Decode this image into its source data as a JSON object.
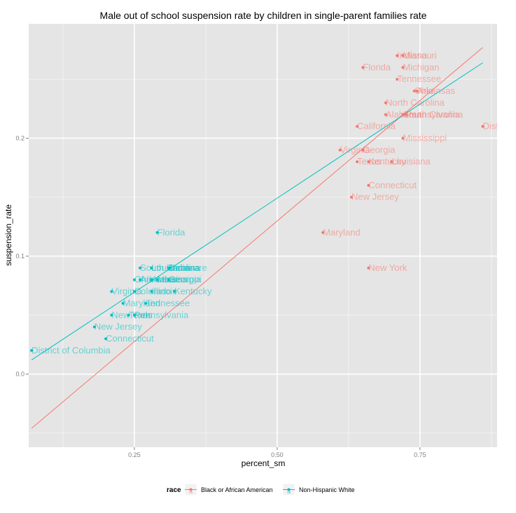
{
  "colors": {
    "panel": "#e5e5e5",
    "grid_major": "#ffffff",
    "grid_minor": "#f2f2f2",
    "black": "#f8766d",
    "white": "#00bfc4",
    "axis_text": "#7f7f7f"
  },
  "chart_data": {
    "type": "scatter",
    "title": "Male out of school suspension rate by children in single-parent families rate",
    "xlabel": "percent_sm",
    "ylabel": "suspension_rate",
    "xlim": [
      0.065,
      0.885
    ],
    "ylim": [
      -0.062,
      0.297
    ],
    "x_ticks": [
      0.25,
      0.5,
      0.75
    ],
    "x_tick_labels": [
      "0.25",
      "0.50",
      "0.75"
    ],
    "y_ticks": [
      0.0,
      0.1,
      0.2
    ],
    "y_tick_labels": [
      "0.0",
      "0.1",
      "0.2"
    ],
    "grid": true,
    "legend_position": "bottom",
    "legend": {
      "title": "race",
      "items": [
        {
          "key": "black",
          "label": "Black or African American",
          "symbol": "a"
        },
        {
          "key": "white",
          "label": "Non-Hispanic White",
          "symbol": "a"
        }
      ]
    },
    "series": [
      {
        "name": "Black or African American",
        "key": "black",
        "fit": {
          "x": [
            0.07,
            0.86
          ],
          "y": [
            -0.046,
            0.277
          ]
        },
        "points": [
          {
            "x": 0.71,
            "y": 0.27,
            "label": "Indiana"
          },
          {
            "x": 0.72,
            "y": 0.27,
            "label": "Missouri"
          },
          {
            "x": 0.65,
            "y": 0.26,
            "label": "Florida"
          },
          {
            "x": 0.72,
            "y": 0.26,
            "label": "Michigan"
          },
          {
            "x": 0.71,
            "y": 0.25,
            "label": "Tennessee"
          },
          {
            "x": 0.74,
            "y": 0.24,
            "label": "Ohio"
          },
          {
            "x": 0.745,
            "y": 0.24,
            "label": "Arkansas"
          },
          {
            "x": 0.69,
            "y": 0.23,
            "label": "North Carolina"
          },
          {
            "x": 0.69,
            "y": 0.22,
            "label": "Alabama"
          },
          {
            "x": 0.72,
            "y": 0.22,
            "label": "South Carolina"
          },
          {
            "x": 0.725,
            "y": 0.22,
            "label": "Pennsylvania"
          },
          {
            "x": 0.64,
            "y": 0.21,
            "label": "California"
          },
          {
            "x": 0.86,
            "y": 0.21,
            "label": "District of Columbia"
          },
          {
            "x": 0.72,
            "y": 0.2,
            "label": "Mississippi"
          },
          {
            "x": 0.61,
            "y": 0.19,
            "label": "Virginia"
          },
          {
            "x": 0.65,
            "y": 0.19,
            "label": "Georgia"
          },
          {
            "x": 0.64,
            "y": 0.18,
            "label": "Texas"
          },
          {
            "x": 0.66,
            "y": 0.18,
            "label": "Kentucky"
          },
          {
            "x": 0.7,
            "y": 0.18,
            "label": "Louisiana"
          },
          {
            "x": 0.66,
            "y": 0.16,
            "label": "Connecticut"
          },
          {
            "x": 0.63,
            "y": 0.15,
            "label": "New Jersey"
          },
          {
            "x": 0.58,
            "y": 0.12,
            "label": "Maryland"
          },
          {
            "x": 0.66,
            "y": 0.09,
            "label": "New York"
          }
        ]
      },
      {
        "name": "Non-Hispanic White",
        "key": "white",
        "fit": {
          "x": [
            0.07,
            0.86
          ],
          "y": [
            0.012,
            0.264
          ]
        },
        "points": [
          {
            "x": 0.29,
            "y": 0.12,
            "label": "Florida"
          },
          {
            "x": 0.26,
            "y": 0.09,
            "label": "South Carolina"
          },
          {
            "x": 0.28,
            "y": 0.09,
            "label": "Louisiana"
          },
          {
            "x": 0.31,
            "y": 0.09,
            "label": "Delaware"
          },
          {
            "x": 0.312,
            "y": 0.09,
            "label": "Indiana"
          },
          {
            "x": 0.25,
            "y": 0.08,
            "label": "Ohio"
          },
          {
            "x": 0.26,
            "y": 0.08,
            "label": "Arkansas"
          },
          {
            "x": 0.28,
            "y": 0.08,
            "label": "Alabama"
          },
          {
            "x": 0.29,
            "y": 0.08,
            "label": "Mississippi"
          },
          {
            "x": 0.31,
            "y": 0.08,
            "label": "Georgia"
          },
          {
            "x": 0.21,
            "y": 0.07,
            "label": "Virginia"
          },
          {
            "x": 0.25,
            "y": 0.07,
            "label": "Colorado"
          },
          {
            "x": 0.28,
            "y": 0.07,
            "label": "Illinois"
          },
          {
            "x": 0.32,
            "y": 0.07,
            "label": "Kentucky"
          },
          {
            "x": 0.23,
            "y": 0.06,
            "label": "Maryland"
          },
          {
            "x": 0.27,
            "y": 0.06,
            "label": "Tennessee"
          },
          {
            "x": 0.21,
            "y": 0.05,
            "label": "New York"
          },
          {
            "x": 0.24,
            "y": 0.05,
            "label": "Texas"
          },
          {
            "x": 0.25,
            "y": 0.05,
            "label": "Pennsylvania"
          },
          {
            "x": 0.18,
            "y": 0.04,
            "label": "New Jersey"
          },
          {
            "x": 0.2,
            "y": 0.03,
            "label": "Connecticut"
          },
          {
            "x": 0.07,
            "y": 0.02,
            "label": "District of Columbia"
          }
        ]
      }
    ]
  }
}
